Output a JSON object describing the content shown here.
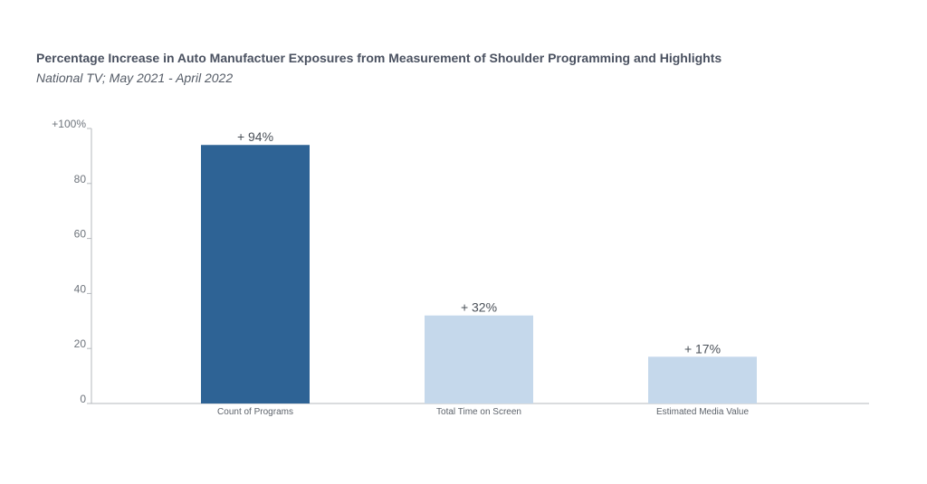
{
  "header": {
    "title": "Percentage Increase in Auto Manufactuer Exposures from Measurement of Shoulder Programming and Highlights",
    "subtitle": "National TV; May 2021 - April 2022"
  },
  "chart_data": {
    "type": "bar",
    "title": "Percentage Increase in Auto Manufactuer Exposures from Measurement of Shoulder Programming and Highlights",
    "subtitle": "National TV; May 2021 - April 2022",
    "categories": [
      "Count of Programs",
      "Total Time on Screen",
      "Estimated Media Value"
    ],
    "values": [
      94,
      32,
      17
    ],
    "data_labels": [
      "+ 94%",
      "+ 32%",
      "+ 17%"
    ],
    "bar_colors": [
      "#2e6395",
      "#c5d8eb",
      "#c5d8eb"
    ],
    "xlabel": "",
    "ylabel": "",
    "ylim": [
      0,
      100
    ],
    "yticks": [
      0,
      20,
      40,
      60,
      80,
      100
    ],
    "ytick_labels": [
      "0",
      "20",
      "40",
      "60",
      "80",
      "+100%"
    ],
    "grid": false,
    "legend": "none"
  }
}
